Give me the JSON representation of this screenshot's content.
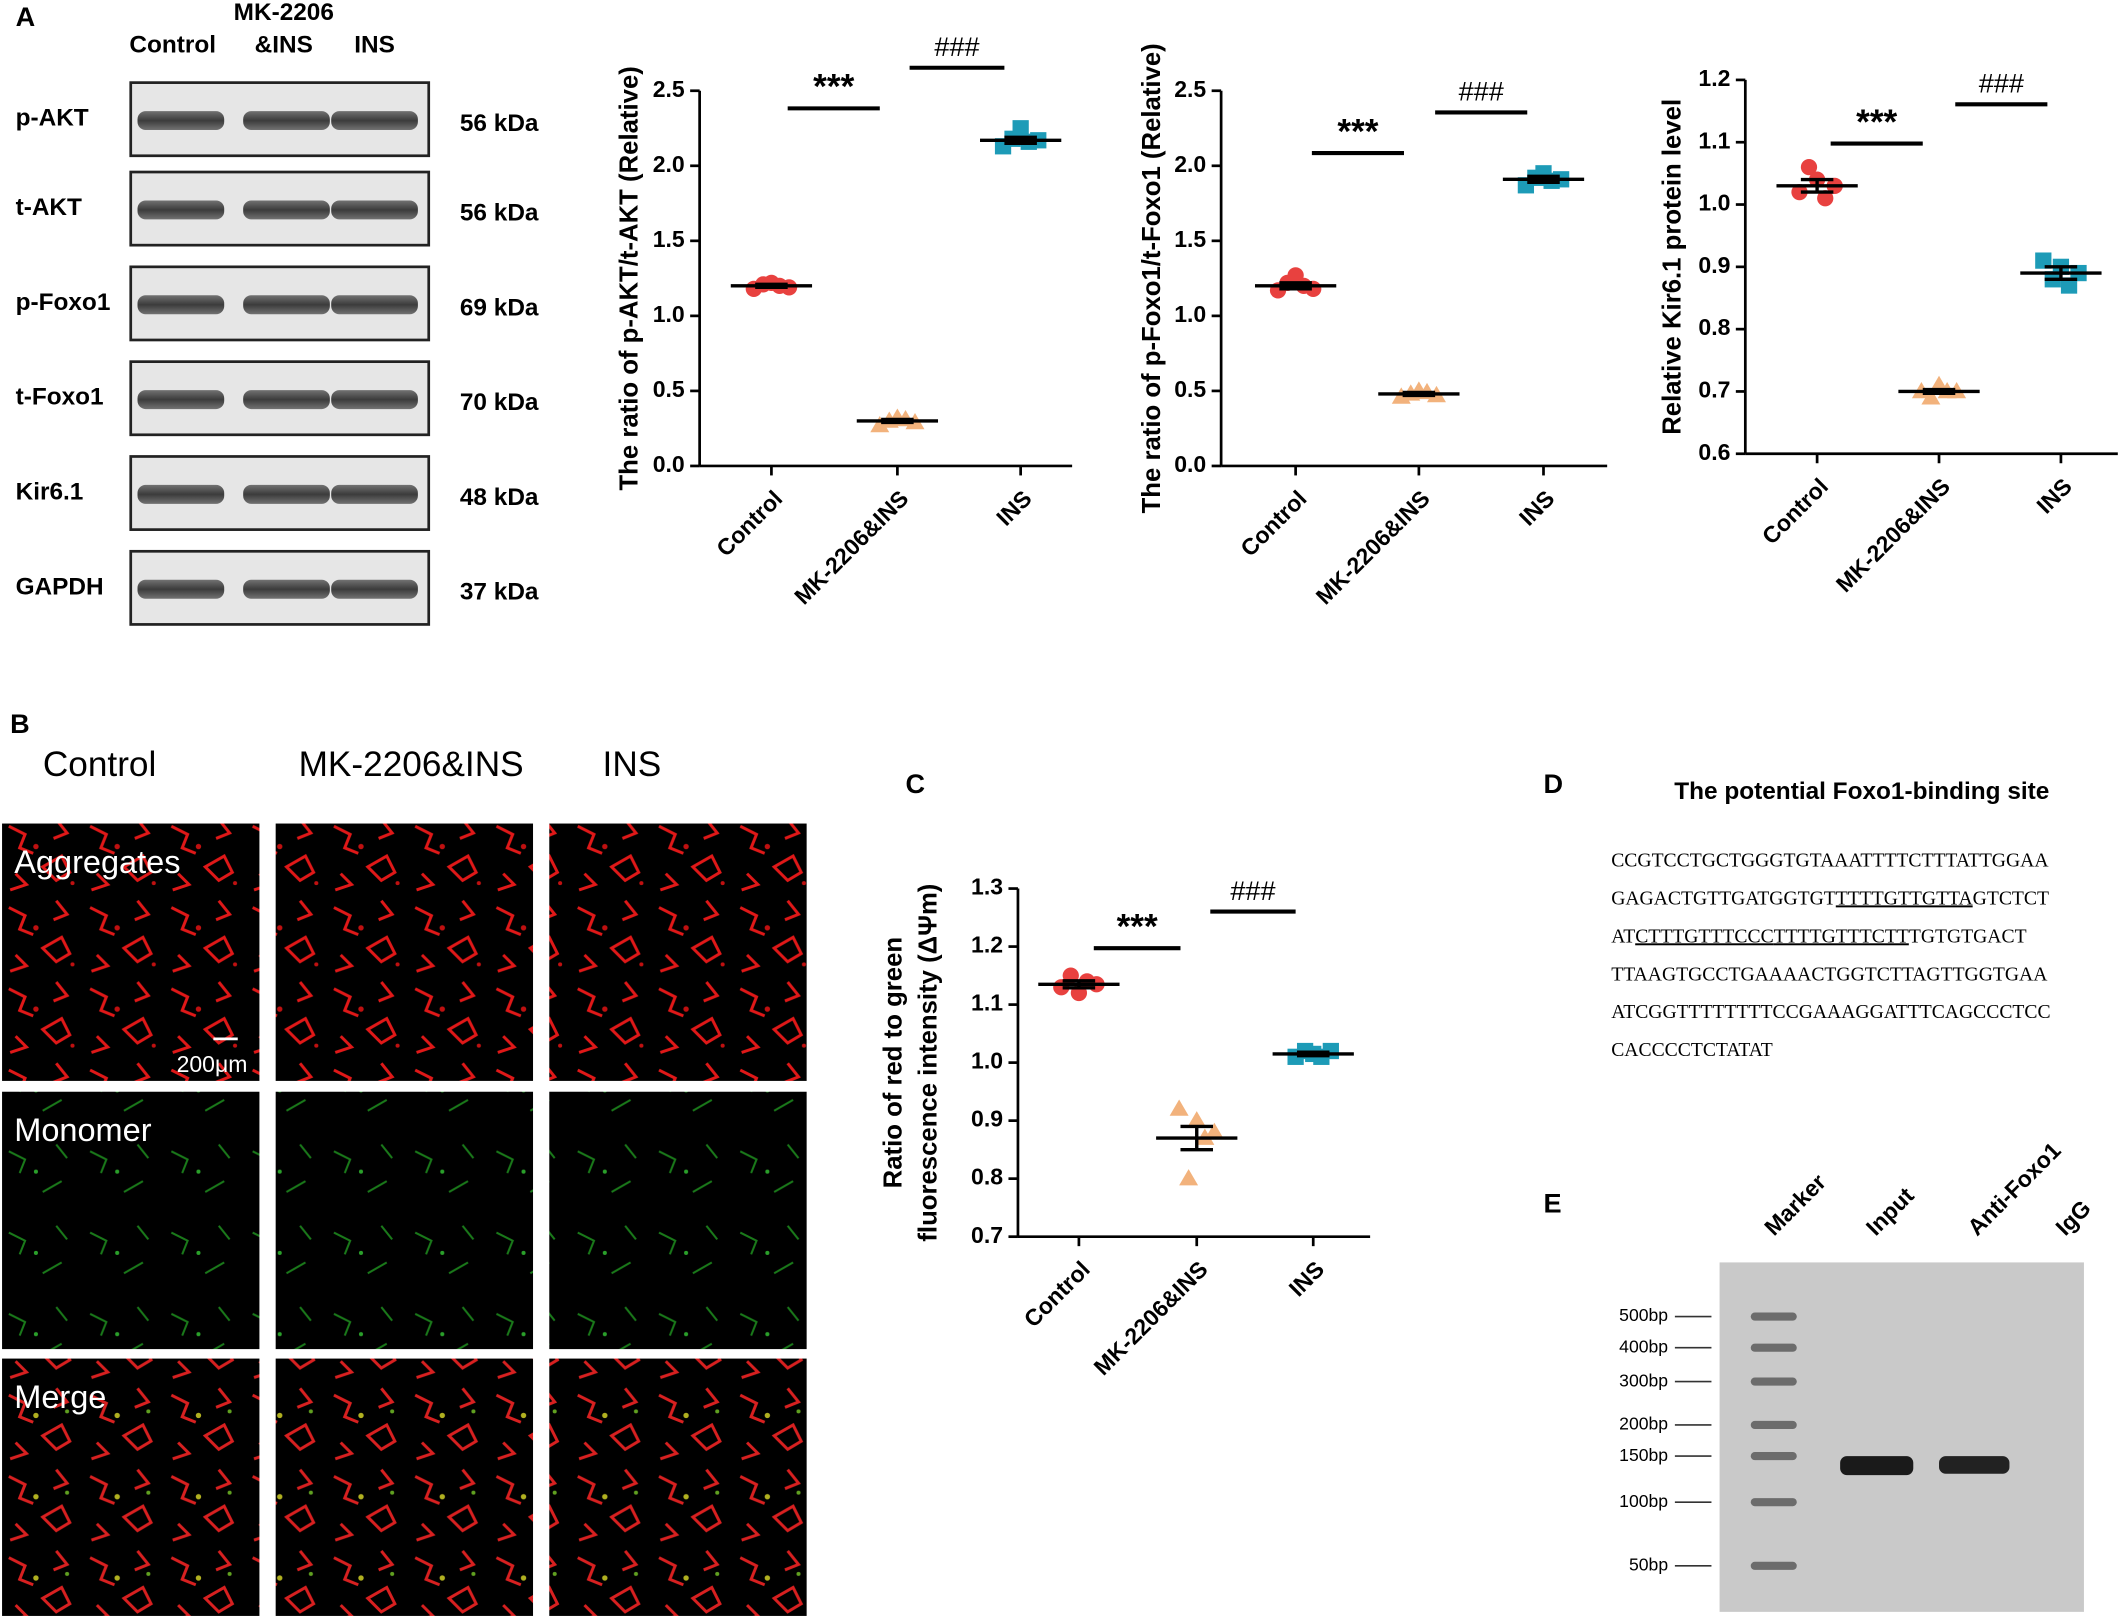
{
  "panel_labels": [
    "A",
    "B",
    "C",
    "D",
    "E"
  ],
  "blot": {
    "lane_header": [
      [
        "Control"
      ],
      [
        "MK-2206",
        "&INS"
      ],
      [
        "INS"
      ]
    ],
    "rows": [
      {
        "protein": "p-AKT",
        "size": "56 kDa"
      },
      {
        "protein": "t-AKT",
        "size": "56 kDa"
      },
      {
        "protein": "p-Foxo1",
        "size": "69 kDa"
      },
      {
        "protein": "t-Foxo1",
        "size": "70 kDa"
      },
      {
        "protein": "Kir6.1",
        "size": "48 kDa"
      },
      {
        "protein": "GAPDH",
        "size": "37 kDa"
      }
    ]
  },
  "micrographs": {
    "columns": [
      "Control",
      "MK-2206&INS",
      "INS"
    ],
    "rows": [
      "Aggregates",
      "Monomer",
      "Merge"
    ],
    "scale_bar": "200μm"
  },
  "chart_data": [
    {
      "type": "dotplot",
      "ylabel": [
        "The ratio of p-AKT/t-AKT (Relative)"
      ],
      "categories": [
        "Control",
        "MK-2206&INS",
        "INS"
      ],
      "points": [
        [
          1.18,
          1.21,
          1.22,
          1.2,
          1.19
        ],
        [
          0.27,
          0.3,
          0.32,
          0.31,
          0.29
        ],
        [
          2.13,
          2.18,
          2.25,
          2.16,
          2.17
        ]
      ],
      "means": [
        1.2,
        0.3,
        2.17
      ],
      "sem": [
        0.01,
        0.01,
        0.02
      ],
      "colors": [
        "#e8413f",
        "#f2b27c",
        "#1d9bb7"
      ],
      "markers": [
        "circle",
        "triangle",
        "square"
      ],
      "ylim": [
        0,
        2.5
      ],
      "yticks": [
        {
          "value": 0,
          "label": "0.0"
        },
        0.5,
        {
          "value": 1,
          "label": "1.0"
        },
        1.5,
        {
          "value": 2,
          "label": "2.0"
        },
        2.5
      ],
      "annotations": [
        "***",
        "###"
      ]
    },
    {
      "type": "dotplot",
      "ylabel": [
        "The ratio of p-Foxo1/t-Foxo1 (Relative)"
      ],
      "categories": [
        "Control",
        "MK-2206&INS",
        "INS"
      ],
      "points": [
        [
          1.17,
          1.22,
          1.27,
          1.2,
          1.18
        ],
        [
          0.46,
          0.48,
          0.5,
          0.49,
          0.47
        ],
        [
          1.87,
          1.92,
          1.95,
          1.9,
          1.91
        ]
      ],
      "means": [
        1.2,
        0.48,
        1.91
      ],
      "sem": [
        0.02,
        0.01,
        0.02
      ],
      "colors": [
        "#e8413f",
        "#f2b27c",
        "#1d9bb7"
      ],
      "markers": [
        "circle",
        "triangle",
        "square"
      ],
      "ylim": [
        0,
        2.5
      ],
      "yticks": [
        {
          "value": 0,
          "label": "0.0"
        },
        0.5,
        {
          "value": 1,
          "label": "1.0"
        },
        1.5,
        {
          "value": 2,
          "label": "2.0"
        },
        2.5
      ],
      "annotations": [
        "***",
        "###"
      ]
    },
    {
      "type": "dotplot",
      "ylabel": [
        "Relative Kir6.1 protein level"
      ],
      "categories": [
        "Control",
        "MK-2206&INS",
        "INS"
      ],
      "points": [
        [
          1.02,
          1.06,
          1.04,
          1.01,
          1.03
        ],
        [
          0.7,
          0.69,
          0.71,
          0.7,
          0.7
        ],
        [
          0.91,
          0.88,
          0.9,
          0.87,
          0.89
        ]
      ],
      "means": [
        1.03,
        0.7,
        0.89
      ],
      "sem": [
        0.01,
        0.003,
        0.01
      ],
      "colors": [
        "#e8413f",
        "#f2b27c",
        "#1d9bb7"
      ],
      "markers": [
        "circle",
        "triangle",
        "square"
      ],
      "ylim": [
        0.6,
        1.2
      ],
      "yticks": [
        0.6,
        0.7,
        0.8,
        0.9,
        {
          "value": 1,
          "label": "1.0"
        },
        1.1,
        1.2
      ],
      "annotations": [
        "***",
        "###"
      ]
    },
    {
      "type": "dotplot",
      "ylabel": [
        "Ratio of red to green",
        "fluorescence intensity (ΔΨm)"
      ],
      "categories": [
        "Control",
        "MK-2206&INS",
        "INS"
      ],
      "points": [
        [
          1.13,
          1.15,
          1.12,
          1.14,
          1.135
        ],
        [
          0.92,
          0.8,
          0.9,
          0.87,
          0.88
        ],
        [
          1.01,
          1.02,
          1.015,
          1.01,
          1.02
        ]
      ],
      "means": [
        1.135,
        0.87,
        1.015
      ],
      "sem": [
        0.006,
        0.02,
        0.003
      ],
      "colors": [
        "#e8413f",
        "#f2b27c",
        "#1d9bb7"
      ],
      "markers": [
        "circle",
        "triangle",
        "square"
      ],
      "ylim": [
        0.7,
        1.3
      ],
      "yticks": [
        0.7,
        0.8,
        0.9,
        {
          "value": 1,
          "label": "1.0"
        },
        1.1,
        1.2,
        1.3
      ],
      "annotations": [
        "***",
        "###"
      ]
    }
  ],
  "sequence": {
    "title": "The potential Foxo1-binding site",
    "lines": [
      [
        "CCGTCCTGCTGGGTGTAAATTTTCTTTATTGGAA"
      ],
      [
        "GAGACTGTTGATGGTGT",
        "TTTTGTTGTTA",
        "GTCTCT"
      ],
      [
        "AT",
        "CTTTGTTTCCC",
        "TTTTGTTTCTT",
        "TGTGTGACT"
      ],
      [
        "TTAAGTGCCTGAAAACTGGTCTTAGTTGGTGAA"
      ],
      [
        "ATCGGTTTTTTTTCCGAAAGGATTTCAGCCCTCC"
      ],
      [
        "CACCCCTCTATAT"
      ]
    ]
  },
  "gel": {
    "lanes": [
      "Marker",
      "Input",
      "Anti-Foxo1",
      "IgG"
    ],
    "ladder": [
      "500bp",
      "400bp",
      "300bp",
      "200bp",
      "150bp",
      "100bp",
      "50bp"
    ]
  }
}
